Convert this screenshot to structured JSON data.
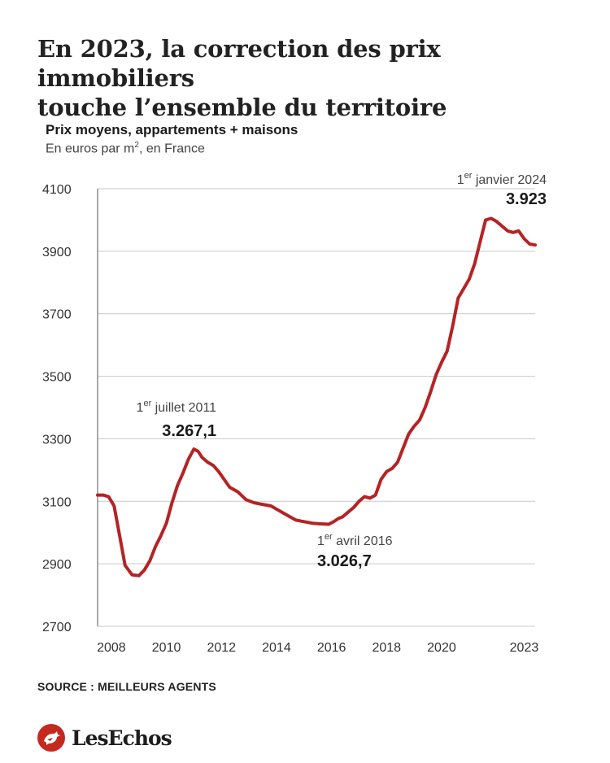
{
  "header": {
    "title_line1": "En 2023, la correction des prix immobiliers",
    "title_line2": "touche l’ensemble du territoire",
    "subtitle": "Prix moyens, appartements + maisons",
    "units_before": "En euros par m",
    "units_sup": "2",
    "units_after": ", en France"
  },
  "footer": {
    "source": "SOURCE : MEILLEURS AGENTS",
    "logo_text": "LesEchos",
    "logo_icon": "les-echos-rooster-icon"
  },
  "colors": {
    "line": "#b42325",
    "grid": "#c9c9c9",
    "logo": "#c5281c"
  },
  "chart_data": {
    "type": "line",
    "title": "Prix moyens, appartements + maisons",
    "ylabel": "En euros par m2, en France",
    "ylim": [
      2700,
      4100
    ],
    "yticks": [
      2700,
      2900,
      3100,
      3300,
      3500,
      3700,
      3900,
      4100
    ],
    "xlim": [
      2007.5,
      2023.4
    ],
    "xticks": [
      {
        "value": 2008,
        "label": "2008"
      },
      {
        "value": 2010,
        "label": "2010"
      },
      {
        "value": 2012,
        "label": "2012"
      },
      {
        "value": 2014,
        "label": "2014"
      },
      {
        "value": 2016,
        "label": "2016"
      },
      {
        "value": 2018,
        "label": "2018"
      },
      {
        "value": 2020,
        "label": "2020"
      },
      {
        "value": 2023,
        "label": "2023"
      }
    ],
    "grid": true,
    "series": [
      {
        "x": [
          2007.5,
          2007.7,
          2007.9,
          2008.1,
          2008.3,
          2008.5,
          2008.75,
          2009.0,
          2009.2,
          2009.4,
          2009.6,
          2009.8,
          2010.0,
          2010.2,
          2010.4,
          2010.6,
          2010.8,
          2011.0,
          2011.15,
          2011.3,
          2011.5,
          2011.7,
          2011.9,
          2012.1,
          2012.3,
          2012.6,
          2012.9,
          2013.2,
          2013.5,
          2013.8,
          2014.1,
          2014.4,
          2014.7,
          2015.0,
          2015.3,
          2015.6,
          2015.9,
          2016.1,
          2016.25,
          2016.4,
          2016.6,
          2016.8,
          2017.0,
          2017.2,
          2017.4,
          2017.6,
          2017.8,
          2018.0,
          2018.2,
          2018.4,
          2018.6,
          2018.8,
          2019.0,
          2019.2,
          2019.4,
          2019.6,
          2019.8,
          2020.0,
          2020.2,
          2020.4,
          2020.6,
          2020.8,
          2021.0,
          2021.2,
          2021.4,
          2021.6,
          2021.8,
          2022.0,
          2022.2,
          2022.4,
          2022.6,
          2022.8,
          2023.0,
          2023.2,
          2023.4
        ],
        "values": [
          3120,
          3120,
          3115,
          3085,
          2990,
          2895,
          2865,
          2862,
          2880,
          2910,
          2955,
          2990,
          3030,
          3095,
          3150,
          3190,
          3235,
          3267.1,
          3260,
          3240,
          3225,
          3215,
          3195,
          3170,
          3145,
          3130,
          3105,
          3095,
          3090,
          3085,
          3070,
          3055,
          3040,
          3035,
          3030,
          3028,
          3026.7,
          3036,
          3045,
          3050,
          3065,
          3080,
          3100,
          3115,
          3110,
          3120,
          3170,
          3195,
          3205,
          3225,
          3270,
          3315,
          3340,
          3360,
          3400,
          3450,
          3505,
          3545,
          3580,
          3660,
          3750,
          3780,
          3810,
          3860,
          3930,
          4000,
          4005,
          3995,
          3980,
          3965,
          3960,
          3965,
          3940,
          3923,
          3920
        ]
      }
    ],
    "annotations": [
      {
        "date_sup": "er",
        "date_rest": " juillet 2011",
        "value": "3.267,1"
      },
      {
        "date_sup": "er",
        "date_rest": " avril 2016",
        "value": "3.026,7"
      },
      {
        "date_sup": "er",
        "date_rest": " janvier 2024",
        "value": "3.923"
      }
    ]
  }
}
